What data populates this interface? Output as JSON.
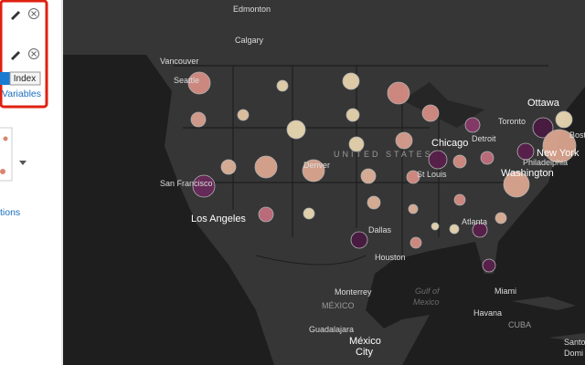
{
  "panel": {
    "button": "Index",
    "link": "Variables",
    "link_cut": "tions"
  },
  "map": {
    "labels": [
      "Edmonton",
      "Calgary",
      "Vancouver",
      "Seattle",
      "San Francisco",
      "Los Angeles",
      "Denver",
      "UNITED STATES",
      "Chicago",
      "Detroit",
      "Toronto",
      "Ottawa",
      "Bosto",
      "New York",
      "Philadelphia",
      "Washington",
      "St Louis",
      "Dallas",
      "Atlanta",
      "Houston",
      "Miami",
      "Havana",
      "CUBA",
      "Gulf of",
      "Mexico",
      "MÉXICO",
      "Monterrey",
      "Guadalajara",
      "México",
      "City",
      "Santo",
      "Domi"
    ]
  }
}
